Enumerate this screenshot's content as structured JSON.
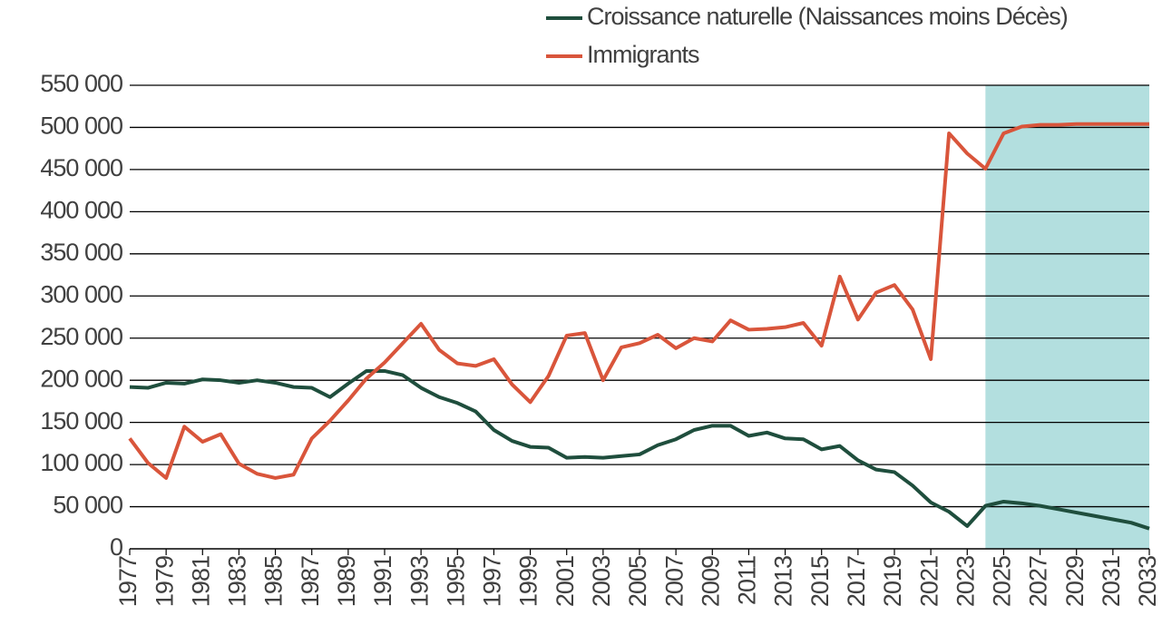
{
  "chart_data": {
    "type": "line",
    "x": [
      1977,
      1978,
      1979,
      1980,
      1981,
      1982,
      1983,
      1984,
      1985,
      1986,
      1987,
      1988,
      1989,
      1990,
      1991,
      1992,
      1993,
      1994,
      1995,
      1996,
      1997,
      1998,
      1999,
      2000,
      2001,
      2002,
      2003,
      2004,
      2005,
      2006,
      2007,
      2008,
      2009,
      2010,
      2011,
      2012,
      2013,
      2014,
      2015,
      2016,
      2017,
      2018,
      2019,
      2020,
      2021,
      2022,
      2023,
      2024,
      2025,
      2026,
      2027,
      2028,
      2029,
      2030,
      2031,
      2032,
      2033
    ],
    "series": [
      {
        "name": "Croissance naturelle (Naissances moins Décès)",
        "color": "#1f4e3d",
        "values": [
          192000,
          191000,
          197000,
          196000,
          201000,
          200000,
          197000,
          200000,
          197000,
          192000,
          191000,
          180000,
          196000,
          211000,
          211000,
          206000,
          191000,
          180000,
          173000,
          163000,
          141000,
          128000,
          121000,
          120000,
          108000,
          109000,
          108000,
          110000,
          112000,
          123000,
          130000,
          141000,
          146000,
          146000,
          134000,
          138000,
          131000,
          130000,
          118000,
          122000,
          105000,
          94000,
          91000,
          75000,
          55000,
          44000,
          27000,
          51000,
          56000,
          54000,
          51000,
          47000,
          43000,
          39000,
          35000,
          31000,
          24000
        ]
      },
      {
        "name": "Immigrants",
        "color": "#d9553b",
        "values": [
          131000,
          102000,
          84000,
          145000,
          127000,
          136000,
          101000,
          89000,
          84000,
          88000,
          131000,
          152000,
          176000,
          202000,
          221000,
          244000,
          267000,
          236000,
          220000,
          217000,
          225000,
          195000,
          174000,
          205000,
          253000,
          256000,
          200000,
          239000,
          244000,
          254000,
          238000,
          250000,
          246000,
          271000,
          260000,
          261000,
          263000,
          268000,
          241000,
          323000,
          272000,
          304000,
          313000,
          284000,
          225000,
          493000,
          469000,
          451000,
          493000,
          501000,
          503000,
          503000,
          504000,
          504000,
          504000,
          504000,
          504000
        ]
      }
    ],
    "xlim": [
      1977,
      2033
    ],
    "xticks": [
      1977,
      1979,
      1981,
      1983,
      1985,
      1987,
      1989,
      1991,
      1993,
      1995,
      1997,
      1999,
      2001,
      2003,
      2005,
      2007,
      2009,
      2011,
      2013,
      2015,
      2017,
      2019,
      2021,
      2023,
      2025,
      2027,
      2029,
      2031,
      2033
    ],
    "ylim": [
      0,
      550000
    ],
    "yticks": [
      0,
      {
        "value": 50000,
        "label": "50 000"
      },
      {
        "value": 100000,
        "label": "100 000"
      },
      {
        "value": 150000,
        "label": "150 000"
      },
      {
        "value": 200000,
        "label": "200 000"
      },
      {
        "value": 250000,
        "label": "250 000"
      },
      {
        "value": 300000,
        "label": "300 000"
      },
      {
        "value": 350000,
        "label": "350 000"
      },
      {
        "value": 400000,
        "label": "400 000"
      },
      {
        "value": 450000,
        "label": "450 000"
      },
      {
        "value": 500000,
        "label": "500 000"
      },
      {
        "value": 550000,
        "label": "550 000"
      }
    ],
    "grid": true,
    "shaded_region": {
      "x": [
        2024,
        2033
      ],
      "color": "#b3dfdf"
    },
    "legend": "top-right"
  }
}
